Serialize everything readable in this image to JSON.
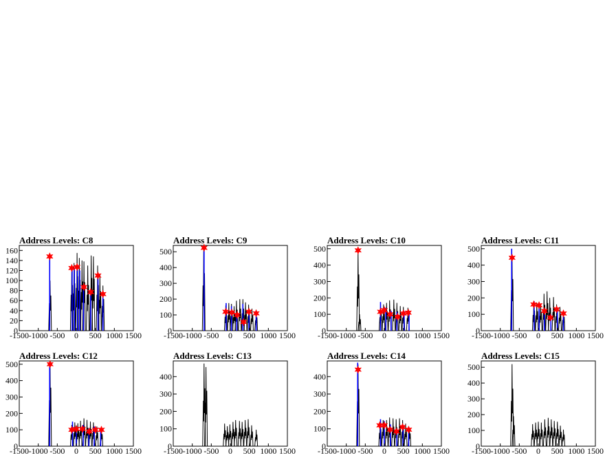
{
  "colors": {
    "black": "#000000",
    "blue": "#0000ff",
    "marker": "#ff0000"
  },
  "chart_data": [
    {
      "type": "bar",
      "title": "Address Levels: C8",
      "xlim": [
        -1500,
        1500
      ],
      "ylim": [
        0,
        170
      ],
      "xticks": [
        "-1500",
        "-1000",
        "-500",
        "0",
        "500",
        "1000",
        "1500"
      ],
      "yticks": [
        "0",
        "20",
        "40",
        "60",
        "80",
        "100",
        "120",
        "140",
        "160"
      ],
      "black_peaks": [
        [
          -690,
          100
        ],
        [
          -120,
          130
        ],
        [
          -60,
          135
        ],
        [
          20,
          155
        ],
        [
          80,
          145
        ],
        [
          150,
          140
        ],
        [
          200,
          138
        ],
        [
          300,
          130
        ],
        [
          390,
          150
        ],
        [
          450,
          148
        ],
        [
          560,
          130
        ],
        [
          620,
          112
        ],
        [
          700,
          90
        ]
      ],
      "blue_peaks": [
        [
          -700,
          152
        ],
        [
          -110,
          125
        ],
        [
          -50,
          125
        ],
        [
          30,
          130
        ],
        [
          90,
          120
        ],
        [
          190,
          88
        ],
        [
          380,
          78
        ],
        [
          570,
          110
        ],
        [
          700,
          73
        ]
      ],
      "markers": [
        [
          -700,
          148
        ],
        [
          -120,
          125
        ],
        [
          20,
          127
        ],
        [
          200,
          87
        ],
        [
          380,
          77
        ],
        [
          570,
          110
        ],
        [
          700,
          73
        ]
      ]
    },
    {
      "type": "bar",
      "title": "Address Levels: C9",
      "xlim": [
        -1500,
        1500
      ],
      "ylim": [
        0,
        540
      ],
      "xticks": [
        "-1500",
        "-1000",
        "-500",
        "0",
        "500",
        "1000",
        "1500"
      ],
      "yticks": [
        "0",
        "100",
        "200",
        "300",
        "400",
        "500"
      ],
      "black_peaks": [
        [
          -700,
          520
        ],
        [
          -120,
          160
        ],
        [
          -40,
          175
        ],
        [
          30,
          170
        ],
        [
          100,
          155
        ],
        [
          160,
          190
        ],
        [
          250,
          200
        ],
        [
          330,
          200
        ],
        [
          400,
          180
        ],
        [
          480,
          165
        ],
        [
          570,
          140
        ],
        [
          680,
          120
        ]
      ],
      "blue_peaks": [
        [
          -690,
          520
        ],
        [
          -110,
          175
        ],
        [
          30,
          155
        ],
        [
          170,
          110
        ],
        [
          330,
          170
        ],
        [
          490,
          120
        ],
        [
          680,
          110
        ]
      ],
      "markers": [
        [
          -690,
          525
        ],
        [
          -120,
          120
        ],
        [
          40,
          115
        ],
        [
          180,
          100
        ],
        [
          350,
          55
        ],
        [
          490,
          120
        ],
        [
          680,
          110
        ]
      ]
    },
    {
      "type": "bar",
      "title": "Address Levels: C10",
      "xlim": [
        -1500,
        1500
      ],
      "ylim": [
        0,
        520
      ],
      "xticks": [
        "-1500",
        "-1000",
        "-500",
        "0",
        "500",
        "1000",
        "1500"
      ],
      "yticks": [
        "0",
        "100",
        "200",
        "300",
        "400",
        "500"
      ],
      "black_peaks": [
        [
          -690,
          490
        ],
        [
          -650,
          100
        ],
        [
          -100,
          150
        ],
        [
          -20,
          160
        ],
        [
          60,
          170
        ],
        [
          140,
          185
        ],
        [
          250,
          190
        ],
        [
          330,
          170
        ],
        [
          420,
          150
        ],
        [
          500,
          145
        ],
        [
          620,
          140
        ]
      ],
      "blue_peaks": [
        [
          -100,
          175
        ],
        [
          40,
          140
        ],
        [
          180,
          120
        ],
        [
          330,
          115
        ],
        [
          520,
          120
        ],
        [
          650,
          115
        ]
      ],
      "markers": [
        [
          -690,
          490
        ],
        [
          -100,
          115
        ],
        [
          0,
          125
        ],
        [
          150,
          100
        ],
        [
          350,
          85
        ],
        [
          500,
          105
        ],
        [
          630,
          110
        ]
      ]
    },
    {
      "type": "bar",
      "title": "Address Levels: C11",
      "xlim": [
        -1500,
        1500
      ],
      "ylim": [
        0,
        520
      ],
      "xticks": [
        "-1500",
        "-1000",
        "-500",
        "0",
        "500",
        "1000",
        "1500"
      ],
      "yticks": [
        "0",
        "100",
        "200",
        "300",
        "400",
        "500"
      ],
      "black_peaks": [
        [
          -690,
          450
        ],
        [
          -120,
          175
        ],
        [
          -40,
          170
        ],
        [
          60,
          165
        ],
        [
          150,
          225
        ],
        [
          230,
          240
        ],
        [
          300,
          200
        ],
        [
          400,
          205
        ],
        [
          480,
          160
        ],
        [
          570,
          145
        ],
        [
          660,
          120
        ]
      ],
      "blue_peaks": [
        [
          -700,
          500
        ],
        [
          -110,
          180
        ],
        [
          20,
          165
        ],
        [
          160,
          125
        ],
        [
          330,
          100
        ],
        [
          500,
          140
        ],
        [
          660,
          110
        ]
      ],
      "markers": [
        [
          -690,
          445
        ],
        [
          -120,
          160
        ],
        [
          20,
          155
        ],
        [
          160,
          120
        ],
        [
          320,
          80
        ],
        [
          480,
          130
        ],
        [
          660,
          105
        ]
      ]
    },
    {
      "type": "bar",
      "title": "Address Levels: C12",
      "xlim": [
        -1500,
        1500
      ],
      "ylim": [
        0,
        520
      ],
      "xticks": [
        "-1500",
        "-1000",
        "-500",
        "0",
        "500",
        "1000",
        "1500"
      ],
      "yticks": [
        "0",
        "100",
        "200",
        "300",
        "400",
        "500"
      ],
      "black_peaks": [
        [
          -690,
          510
        ],
        [
          -120,
          130
        ],
        [
          -40,
          145
        ],
        [
          40,
          140
        ],
        [
          110,
          155
        ],
        [
          200,
          170
        ],
        [
          280,
          160
        ],
        [
          370,
          150
        ],
        [
          450,
          145
        ],
        [
          540,
          120
        ],
        [
          660,
          105
        ]
      ],
      "blue_peaks": [
        [
          -700,
          510
        ],
        [
          -100,
          150
        ],
        [
          0,
          125
        ],
        [
          180,
          130
        ],
        [
          330,
          110
        ],
        [
          470,
          120
        ],
        [
          640,
          100
        ]
      ],
      "markers": [
        [
          -690,
          500
        ],
        [
          -120,
          100
        ],
        [
          0,
          105
        ],
        [
          160,
          105
        ],
        [
          340,
          90
        ],
        [
          500,
          100
        ],
        [
          660,
          100
        ]
      ]
    },
    {
      "type": "bar",
      "title": "Address Levels: C13",
      "xlim": [
        -1500,
        1500
      ],
      "ylim": [
        0,
        490
      ],
      "xticks": [
        "-1500",
        "-1000",
        "-500",
        "0",
        "500",
        "1000",
        "1500"
      ],
      "yticks": [
        "0",
        "100",
        "200",
        "300",
        "400"
      ],
      "black_peaks": [
        [
          -690,
          475
        ],
        [
          -640,
          455
        ],
        [
          -150,
          130
        ],
        [
          -80,
          115
        ],
        [
          -10,
          125
        ],
        [
          70,
          140
        ],
        [
          140,
          150
        ],
        [
          240,
          145
        ],
        [
          310,
          140
        ],
        [
          390,
          150
        ],
        [
          470,
          155
        ],
        [
          560,
          120
        ],
        [
          680,
          95
        ]
      ],
      "blue_peaks": [],
      "markers": []
    },
    {
      "type": "bar",
      "title": "Address Levels: C14",
      "xlim": [
        -1500,
        1500
      ],
      "ylim": [
        0,
        490
      ],
      "xticks": [
        "-1500",
        "-1000",
        "-500",
        "0",
        "500",
        "1000",
        "1500"
      ],
      "yticks": [
        "0",
        "100",
        "200",
        "300",
        "400"
      ],
      "black_peaks": [
        [
          -690,
          470
        ],
        [
          -110,
          140
        ],
        [
          -30,
          150
        ],
        [
          60,
          150
        ],
        [
          140,
          165
        ],
        [
          230,
          160
        ],
        [
          310,
          155
        ],
        [
          400,
          160
        ],
        [
          480,
          150
        ],
        [
          560,
          130
        ],
        [
          660,
          105
        ]
      ],
      "blue_peaks": [
        [
          -700,
          480
        ],
        [
          -100,
          155
        ],
        [
          0,
          145
        ],
        [
          160,
          125
        ],
        [
          330,
          100
        ],
        [
          490,
          120
        ],
        [
          640,
          100
        ]
      ],
      "markers": [
        [
          -690,
          440
        ],
        [
          -120,
          120
        ],
        [
          0,
          120
        ],
        [
          150,
          95
        ],
        [
          320,
          85
        ],
        [
          480,
          110
        ],
        [
          640,
          95
        ]
      ]
    },
    {
      "type": "bar",
      "title": "Address Levels: C15",
      "xlim": [
        -1500,
        1500
      ],
      "ylim": [
        0,
        540
      ],
      "xticks": [
        "-1500",
        "-1000",
        "-500",
        "0",
        "500",
        "1000",
        "1500"
      ],
      "yticks": [
        "0",
        "100",
        "200",
        "300",
        "400",
        "500"
      ],
      "black_peaks": [
        [
          -690,
          520
        ],
        [
          -650,
          190
        ],
        [
          -150,
          140
        ],
        [
          -70,
          150
        ],
        [
          0,
          155
        ],
        [
          80,
          150
        ],
        [
          170,
          170
        ],
        [
          260,
          180
        ],
        [
          340,
          170
        ],
        [
          420,
          160
        ],
        [
          500,
          155
        ],
        [
          580,
          130
        ],
        [
          660,
          105
        ]
      ],
      "blue_peaks": [],
      "markers": []
    }
  ]
}
